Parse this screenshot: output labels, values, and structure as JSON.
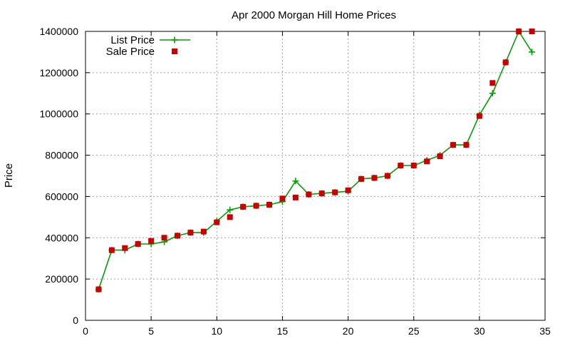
{
  "chart_data": {
    "type": "line",
    "title": "Apr 2000 Morgan Hill Home Prices",
    "xlabel": "",
    "ylabel": "Price",
    "xlim": [
      0,
      35
    ],
    "ylim": [
      0,
      1400000
    ],
    "x_ticks": [
      0,
      5,
      10,
      15,
      20,
      25,
      30,
      35
    ],
    "y_ticks": [
      0,
      200000,
      400000,
      600000,
      800000,
      1000000,
      1200000,
      1400000
    ],
    "grid": true,
    "legend_position": "top-left",
    "series": [
      {
        "name": "List Price",
        "style": "line with plus markers",
        "color": "#00a000",
        "points": [
          [
            1,
            150000
          ],
          [
            2,
            340000
          ],
          [
            3,
            340000
          ],
          [
            4,
            370000
          ],
          [
            5,
            370000
          ],
          [
            6,
            380000
          ],
          [
            7,
            410000
          ],
          [
            8,
            425000
          ],
          [
            9,
            425000
          ],
          [
            10,
            480000
          ],
          [
            11,
            535000
          ],
          [
            12,
            550000
          ],
          [
            13,
            555000
          ],
          [
            14,
            560000
          ],
          [
            15,
            575000
          ],
          [
            16,
            675000
          ],
          [
            17,
            610000
          ],
          [
            18,
            615000
          ],
          [
            19,
            620000
          ],
          [
            20,
            625000
          ],
          [
            21,
            685000
          ],
          [
            22,
            690000
          ],
          [
            23,
            700000
          ],
          [
            24,
            750000
          ],
          [
            25,
            750000
          ],
          [
            26,
            775000
          ],
          [
            27,
            800000
          ],
          [
            28,
            850000
          ],
          [
            29,
            850000
          ],
          [
            30,
            995000
          ],
          [
            31,
            1100000
          ],
          [
            32,
            1250000
          ],
          [
            33,
            1400000
          ],
          [
            34,
            1300000
          ]
        ]
      },
      {
        "name": "Sale Price",
        "style": "square markers",
        "color": "#cc0000",
        "points": [
          [
            1,
            150000
          ],
          [
            2,
            340000
          ],
          [
            3,
            350000
          ],
          [
            4,
            370000
          ],
          [
            5,
            385000
          ],
          [
            6,
            400000
          ],
          [
            7,
            410000
          ],
          [
            8,
            425000
          ],
          [
            9,
            430000
          ],
          [
            10,
            475000
          ],
          [
            11,
            500000
          ],
          [
            12,
            550000
          ],
          [
            13,
            555000
          ],
          [
            14,
            560000
          ],
          [
            15,
            590000
          ],
          [
            16,
            595000
          ],
          [
            17,
            610000
          ],
          [
            18,
            615000
          ],
          [
            19,
            620000
          ],
          [
            20,
            630000
          ],
          [
            21,
            685000
          ],
          [
            22,
            690000
          ],
          [
            23,
            700000
          ],
          [
            24,
            750000
          ],
          [
            25,
            750000
          ],
          [
            26,
            770000
          ],
          [
            27,
            795000
          ],
          [
            28,
            850000
          ],
          [
            29,
            850000
          ],
          [
            30,
            990000
          ],
          [
            31,
            1150000
          ],
          [
            32,
            1250000
          ],
          [
            33,
            1400000
          ],
          [
            34,
            1400000
          ]
        ]
      }
    ]
  }
}
